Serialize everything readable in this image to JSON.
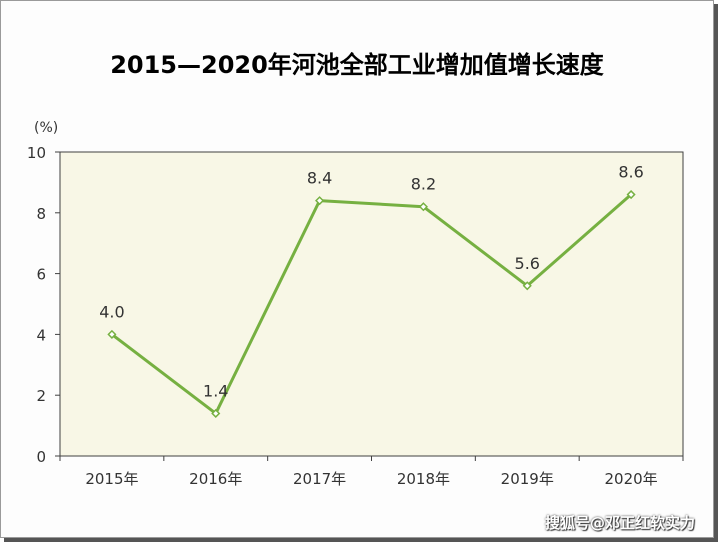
{
  "chart_data": {
    "type": "line",
    "title": "2015—2020年河池全部工业增加值增长速度",
    "ylabel": "(%)",
    "xlabel": "",
    "categories": [
      "2015年",
      "2016年",
      "2017年",
      "2018年",
      "2019年",
      "2020年"
    ],
    "series": [
      {
        "values": [
          4.0,
          1.4,
          8.4,
          8.2,
          5.6,
          8.6
        ],
        "labels": [
          "4.0",
          "1.4",
          "8.4",
          "8.2",
          "5.6",
          "8.6"
        ],
        "color": "#76b041"
      }
    ],
    "ylim": [
      0,
      10
    ],
    "yticks": [
      0,
      2,
      4,
      6,
      8,
      10
    ],
    "grid": false,
    "plot_background": "#f8f7e6",
    "legend": "none"
  },
  "watermark": "搜狐号@邓正红软实力"
}
